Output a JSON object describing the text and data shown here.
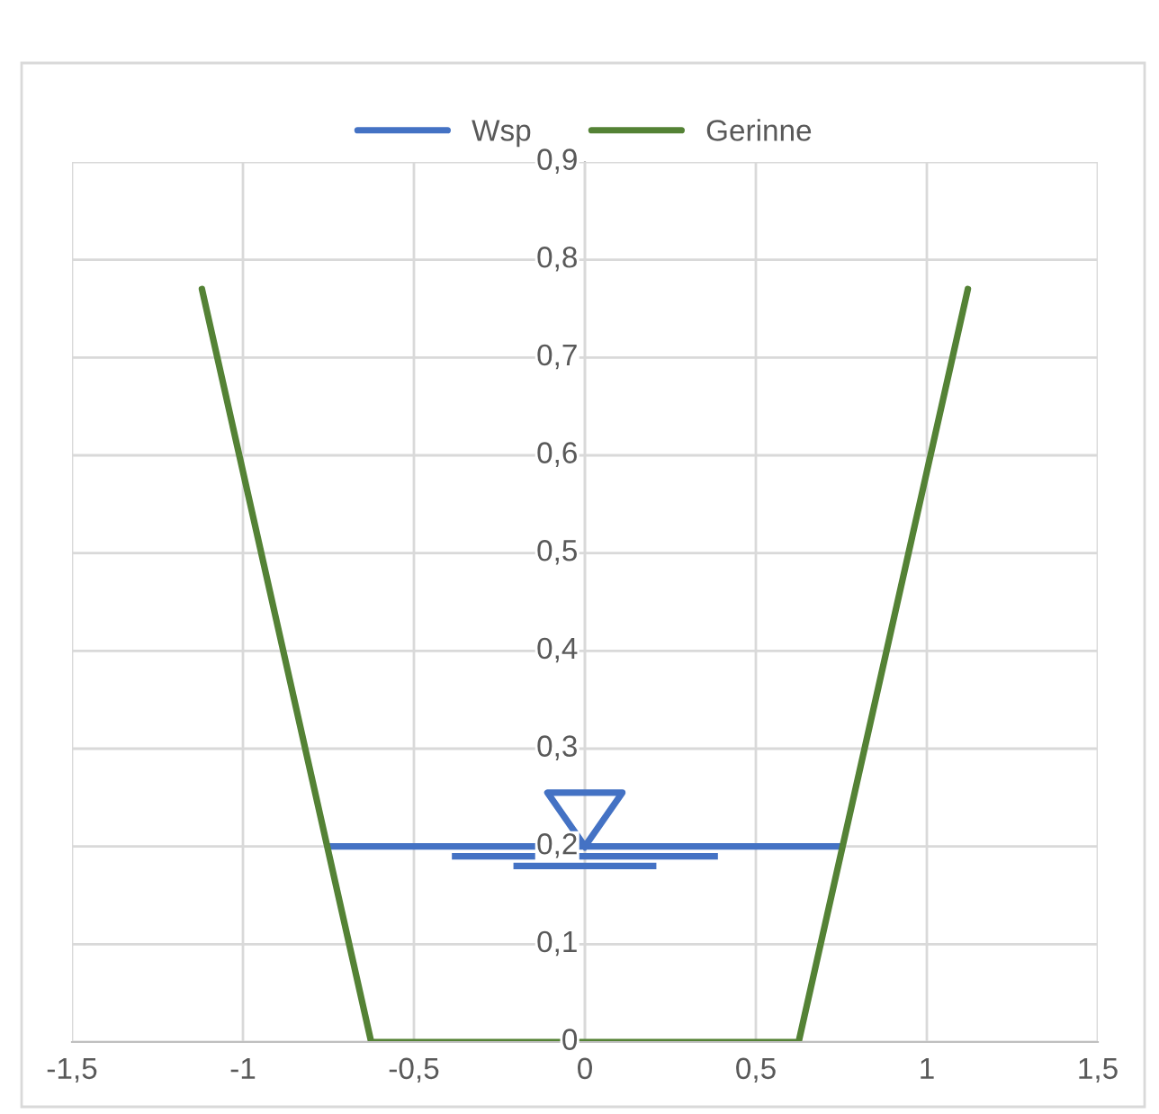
{
  "chart_data": {
    "type": "line",
    "legend": "top",
    "grid": true,
    "marker": "none",
    "line_style": "solid",
    "xlim": [
      -1.5,
      1.5
    ],
    "ylim": [
      0,
      0.9
    ],
    "xticks": [
      {
        "value": -1.5,
        "label": "-1,5"
      },
      {
        "value": -1,
        "label": "-1"
      },
      {
        "value": -0.5,
        "label": "-0,5"
      },
      {
        "value": 0,
        "label": "0"
      },
      {
        "value": 0.5,
        "label": "0,5"
      },
      {
        "value": 1,
        "label": "1"
      },
      {
        "value": 1.5,
        "label": "1,5"
      }
    ],
    "yticks": [
      {
        "value": 0,
        "label": "0"
      },
      {
        "value": 0.1,
        "label": "0,1"
      },
      {
        "value": 0.2,
        "label": "0,2"
      },
      {
        "value": 0.3,
        "label": "0,3"
      },
      {
        "value": 0.4,
        "label": "0,4"
      },
      {
        "value": 0.5,
        "label": "0,5"
      },
      {
        "value": 0.6,
        "label": "0,6"
      },
      {
        "value": 0.7,
        "label": "0,7"
      },
      {
        "value": 0.8,
        "label": "0,8"
      },
      {
        "value": 0.9,
        "label": "0,9"
      }
    ],
    "series": [
      {
        "name": "Wsp",
        "color": "#4472c4",
        "x": [
          -0.75,
          0.75
        ],
        "values": [
          0.2,
          0.2
        ]
      },
      {
        "name": "Gerinne",
        "color": "#548235",
        "x": [
          -1.12,
          -0.625,
          0.625,
          1.12
        ],
        "values": [
          0.77,
          0,
          0,
          0.77
        ]
      }
    ]
  }
}
